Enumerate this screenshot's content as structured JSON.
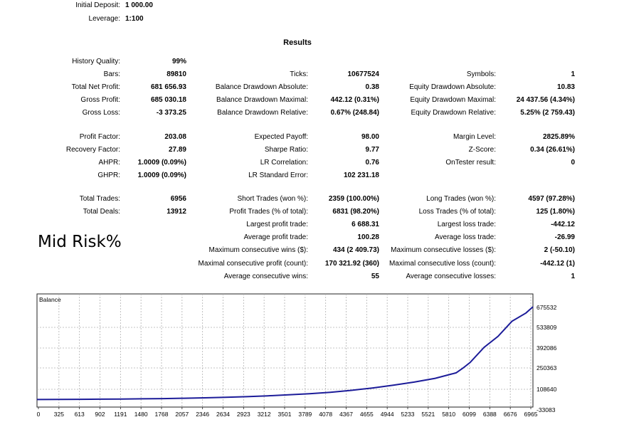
{
  "header": {
    "initial_deposit": {
      "label": "Initial Deposit:",
      "value": "1 000.00"
    },
    "leverage": {
      "label": "Leverage:",
      "value": "1:100"
    }
  },
  "results_title": "Results",
  "risk_note": "Mid Risk%",
  "col1": [
    {
      "label": "History Quality:",
      "value": "99%"
    },
    {
      "label": "Bars:",
      "value": "89810"
    },
    {
      "label": "Total Net Profit:",
      "value": "681 656.93"
    },
    {
      "label": "Gross Profit:",
      "value": "685 030.18"
    },
    {
      "label": "Gross Loss:",
      "value": "-3 373.25"
    },
    {
      "label": "Profit Factor:",
      "value": "203.08"
    },
    {
      "label": "Recovery Factor:",
      "value": "27.89"
    },
    {
      "label": "AHPR:",
      "value": "1.0009 (0.09%)"
    },
    {
      "label": "GHPR:",
      "value": "1.0009 (0.09%)"
    },
    {
      "label": "Total Trades:",
      "value": "6956"
    },
    {
      "label": "Total Deals:",
      "value": "13912"
    }
  ],
  "col2": [
    {
      "label": "Ticks:",
      "value": "10677524"
    },
    {
      "label": "Balance Drawdown Absolute:",
      "value": "0.38"
    },
    {
      "label": "Balance Drawdown Maximal:",
      "value": "442.12 (0.31%)"
    },
    {
      "label": "Balance Drawdown Relative:",
      "value": "0.67% (248.84)"
    },
    {
      "label": "Expected Payoff:",
      "value": "98.00"
    },
    {
      "label": "Sharpe Ratio:",
      "value": "9.77"
    },
    {
      "label": "LR Correlation:",
      "value": "0.76"
    },
    {
      "label": "LR Standard Error:",
      "value": "102 231.18"
    },
    {
      "label": "Short Trades (won %):",
      "value": "2359 (100.00%)"
    },
    {
      "label": "Profit Trades (% of total):",
      "value": "6831 (98.20%)"
    },
    {
      "label": "Largest profit trade:",
      "value": "6 688.31"
    },
    {
      "label": "Average profit trade:",
      "value": "100.28"
    },
    {
      "label": "Maximum consecutive wins ($):",
      "value": "434 (2 409.73)"
    },
    {
      "label": "Maximal consecutive profit (count):",
      "value": "170 321.92 (360)"
    },
    {
      "label": "Average consecutive wins:",
      "value": "55"
    }
  ],
  "col3": [
    {
      "label": "Symbols:",
      "value": "1"
    },
    {
      "label": "Equity Drawdown Absolute:",
      "value": "10.83"
    },
    {
      "label": "Equity Drawdown Maximal:",
      "value": "24 437.56 (4.34%)"
    },
    {
      "label": "Equity Drawdown Relative:",
      "value": "5.25% (2 759.43)"
    },
    {
      "label": "Margin Level:",
      "value": "2825.89%"
    },
    {
      "label": "Z-Score:",
      "value": "0.34 (26.61%)"
    },
    {
      "label": "OnTester result:",
      "value": "0"
    },
    {
      "label": "Long Trades (won %):",
      "value": "4597 (97.28%)"
    },
    {
      "label": "Loss Trades (% of total):",
      "value": "125 (1.80%)"
    },
    {
      "label": "Largest loss trade:",
      "value": "-442.12"
    },
    {
      "label": "Average loss trade:",
      "value": "-26.99"
    },
    {
      "label": "Maximum consecutive losses ($):",
      "value": "2 (-50.10)"
    },
    {
      "label": "Maximal consecutive loss (count):",
      "value": "-442.12 (1)"
    },
    {
      "label": "Average consecutive losses:",
      "value": "1"
    }
  ],
  "chart_data": {
    "type": "line",
    "title": "Balance",
    "x_ticks": [
      "0",
      "325",
      "613",
      "902",
      "1191",
      "1480",
      "1768",
      "2057",
      "2346",
      "2634",
      "2923",
      "3212",
      "3501",
      "3789",
      "4078",
      "4367",
      "4655",
      "4944",
      "5233",
      "5521",
      "5810",
      "6099",
      "6388",
      "6676",
      "6965"
    ],
    "y_ticks": [
      "675532",
      "533809",
      "392086",
      "250363",
      "108640",
      "-33083"
    ],
    "ylim": [
      -33083,
      675532
    ],
    "xlim": [
      0,
      7100
    ],
    "grid": true,
    "line_color": "#1c1c99",
    "series": [
      {
        "x": [
          0,
          300,
          600,
          900,
          1200,
          1500,
          1800,
          2100,
          2400,
          2700,
          3000,
          3300,
          3600,
          3900,
          4200,
          4500,
          4800,
          5100,
          5400,
          5700,
          6000,
          6100,
          6200,
          6400,
          6600,
          6800,
          7000,
          7100
        ],
        "y": [
          1000,
          1800,
          2600,
          3500,
          4500,
          6000,
          8000,
          10500,
          13500,
          17500,
          22000,
          28000,
          35000,
          43000,
          54000,
          68000,
          85000,
          105000,
          128000,
          155000,
          195000,
          230000,
          270000,
          380000,
          460000,
          570000,
          630000,
          675000
        ]
      }
    ]
  }
}
